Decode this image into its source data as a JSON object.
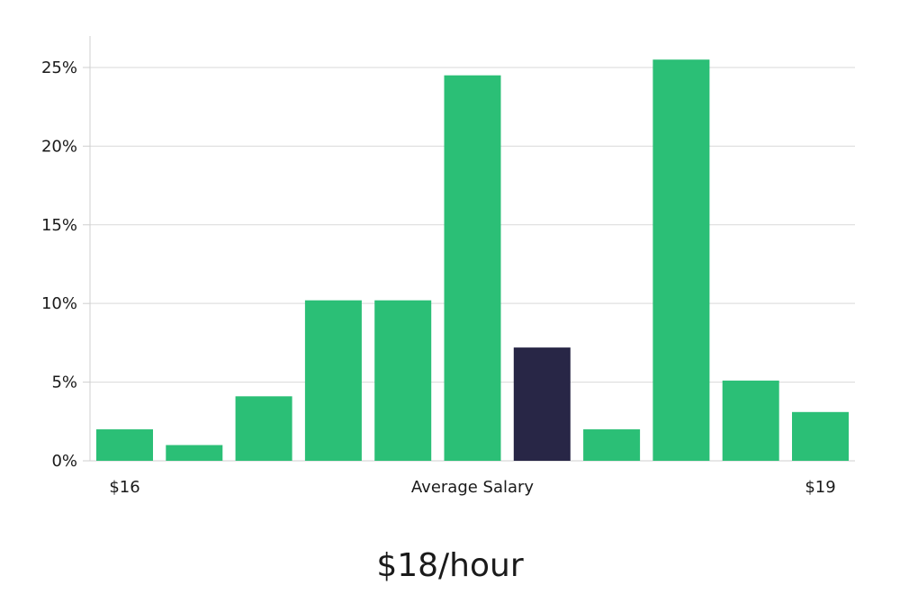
{
  "headline": "$18/hour",
  "colors": {
    "bar": "#2bbf76",
    "highlight": "#282646",
    "grid": "#d9d9d9"
  },
  "chart_data": {
    "type": "bar",
    "ylim": [
      0,
      27
    ],
    "yticks": [
      0,
      5,
      10,
      15,
      20,
      25
    ],
    "ytick_format": "%",
    "grid": true,
    "values": [
      2.0,
      1.0,
      4.1,
      10.2,
      10.2,
      24.5,
      7.2,
      2.0,
      25.5,
      5.1,
      3.1
    ],
    "highlight_index": 6,
    "x_labels": [
      {
        "bar_index": 0,
        "text": "$16"
      },
      {
        "bar_index": 5,
        "text": "Average Salary"
      },
      {
        "bar_index": 10,
        "text": "$19"
      }
    ]
  }
}
